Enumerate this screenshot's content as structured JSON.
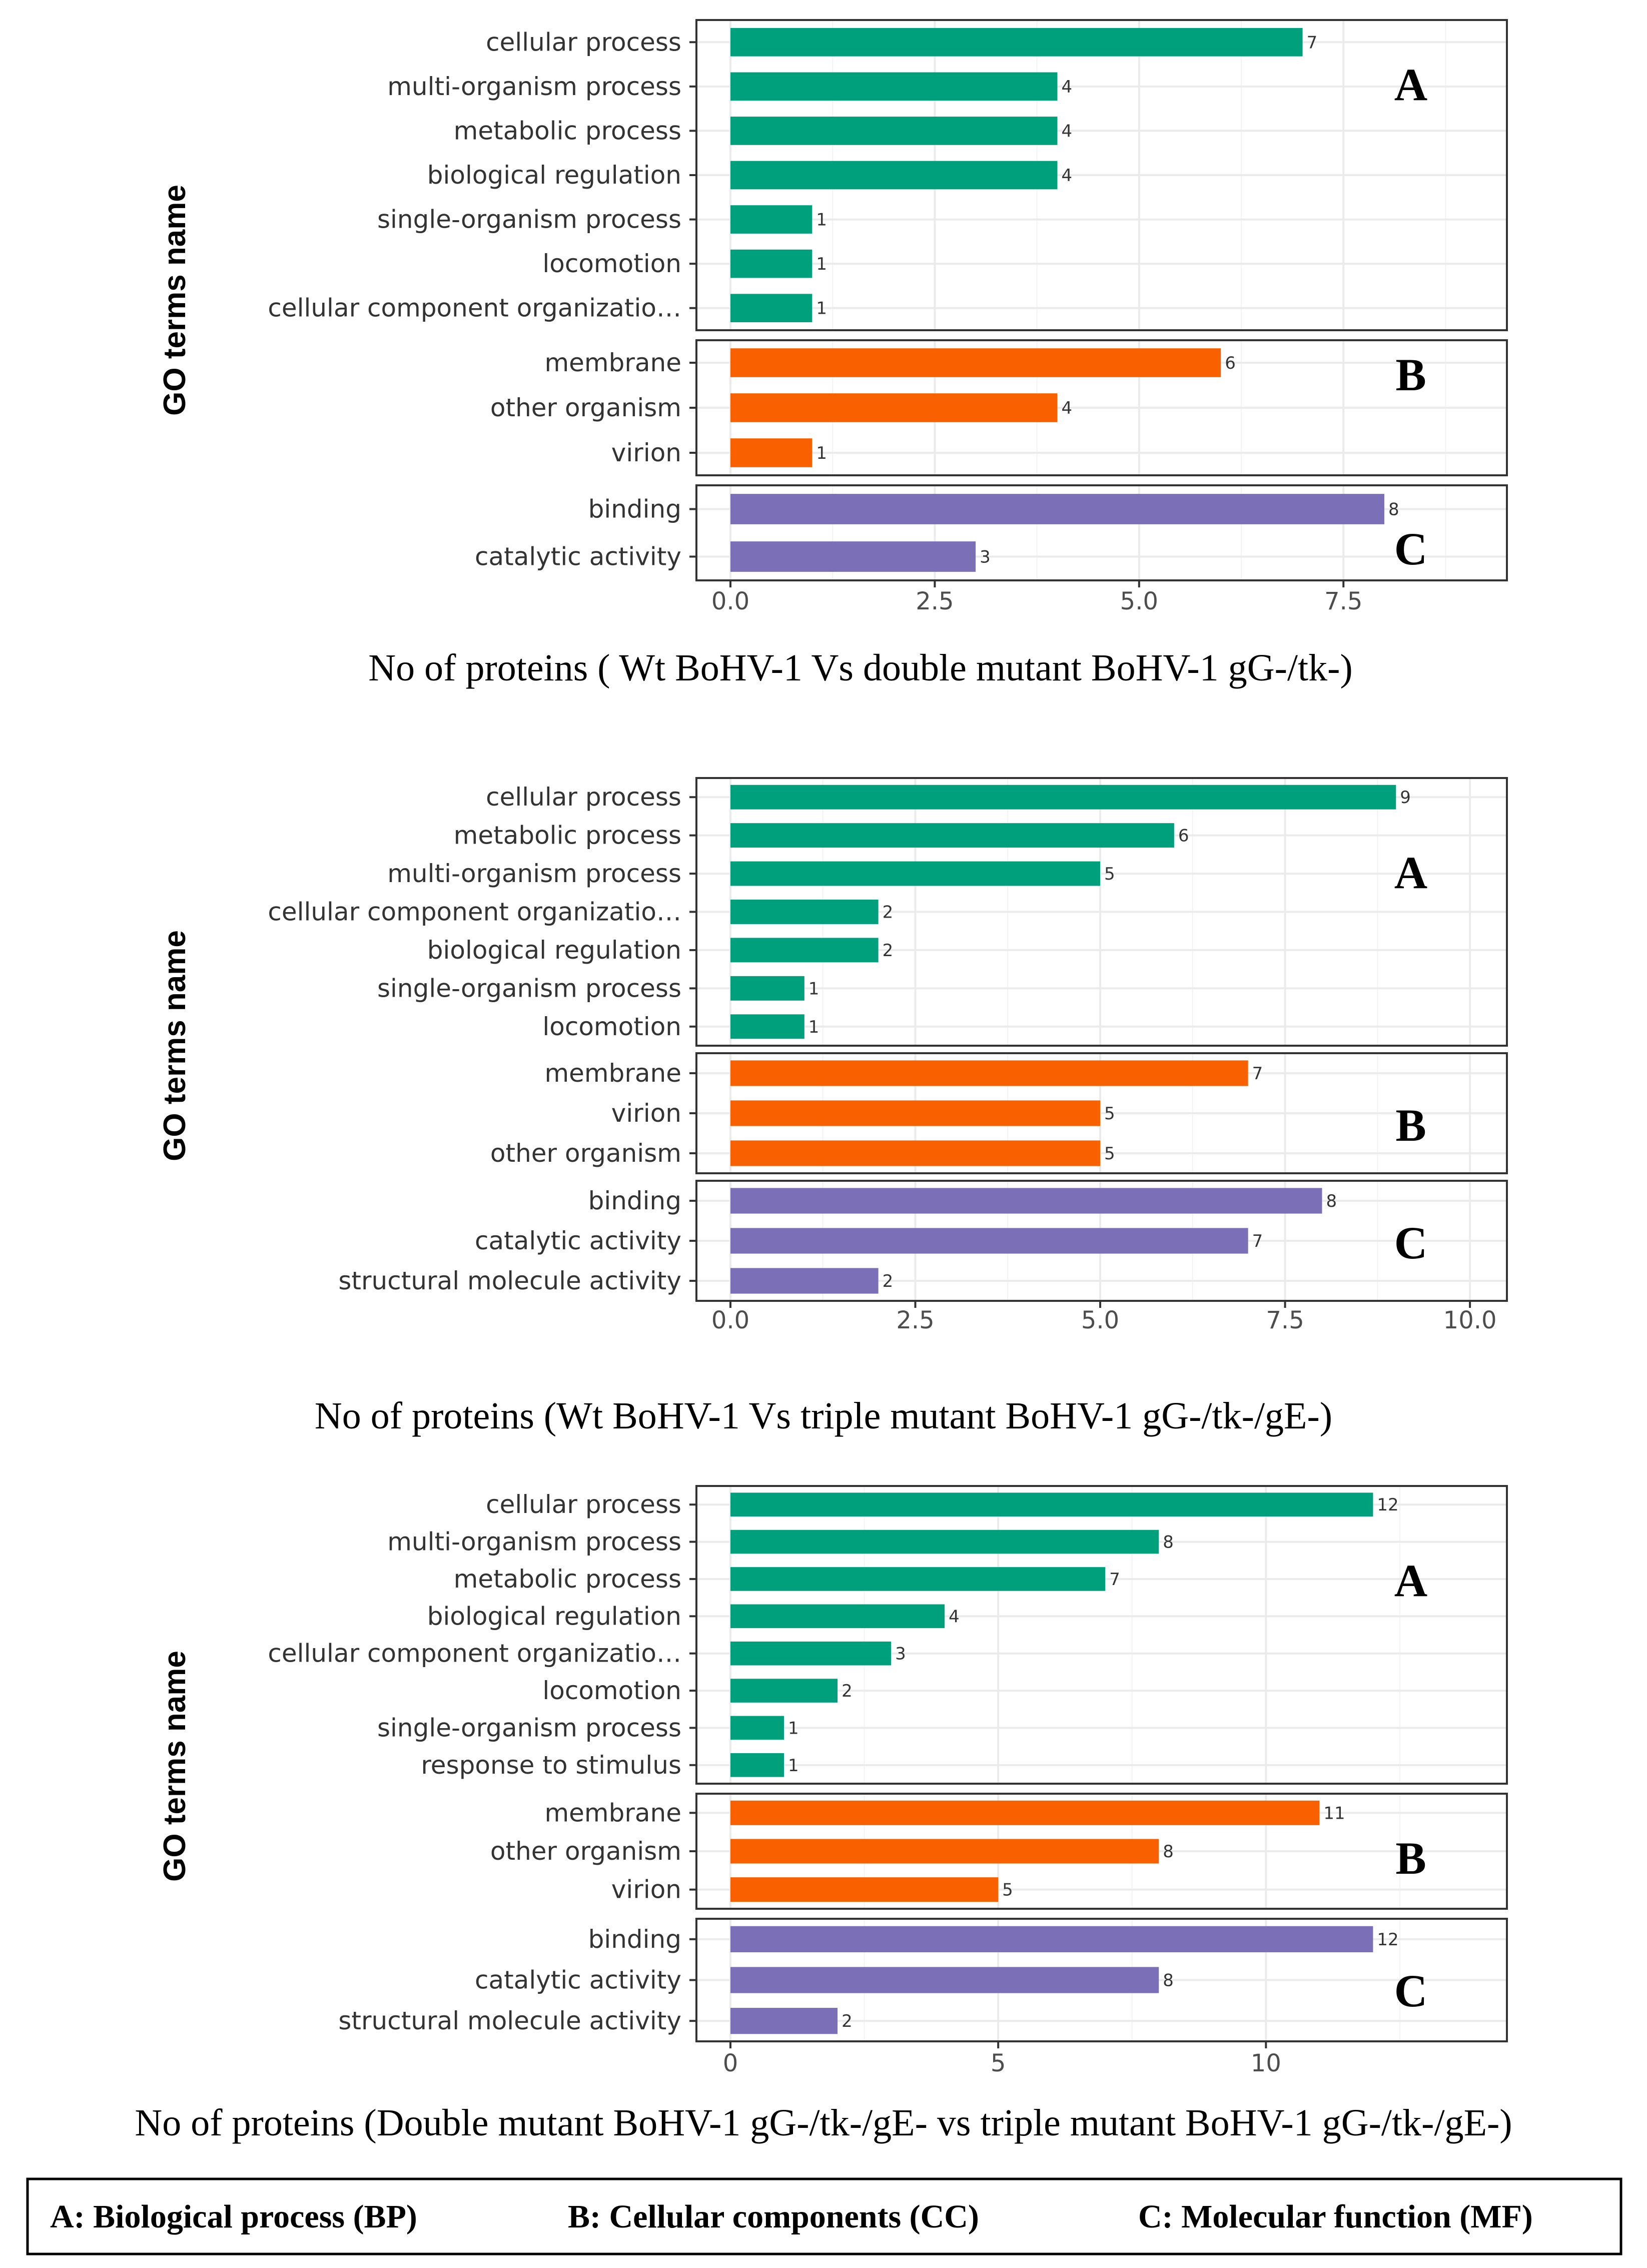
{
  "chart_data": [
    {
      "type": "bar",
      "orientation": "horizontal",
      "ylabel": "GO terms name",
      "xlabel": "No of proteins ( Wt BoHV-1 Vs double mutant BoHV-1 gG-/tk-)",
      "xlim": [
        0,
        9.5
      ],
      "xticks": [
        "0.0",
        "2.5",
        "5.0",
        "7.5"
      ],
      "xtick_values": [
        0,
        2.5,
        5,
        7.5
      ],
      "grid": true,
      "groups": [
        {
          "panel": "A",
          "color": "#00a07c",
          "categories": [
            "cellular process",
            "multi-organism process",
            "metabolic process",
            "biological regulation",
            "single-organism process",
            "locomotion",
            "cellular component organizatio…"
          ],
          "values": [
            7,
            4,
            4,
            4,
            1,
            1,
            1
          ]
        },
        {
          "panel": "B",
          "color": "#f86000",
          "categories": [
            "membrane",
            "other organism",
            "virion"
          ],
          "values": [
            6,
            4,
            1
          ]
        },
        {
          "panel": "C",
          "color": "#7b6fb8",
          "categories": [
            "binding",
            "catalytic activity"
          ],
          "values": [
            8,
            3
          ]
        }
      ]
    },
    {
      "type": "bar",
      "orientation": "horizontal",
      "ylabel": "GO terms name",
      "xlabel": "No of proteins (Wt BoHV-1 Vs triple mutant BoHV-1 gG-/tk-/gE-)",
      "xlim": [
        0,
        10.5
      ],
      "xticks": [
        "0.0",
        "2.5",
        "5.0",
        "7.5",
        "10.0"
      ],
      "xtick_values": [
        0,
        2.5,
        5,
        7.5,
        10
      ],
      "grid": true,
      "groups": [
        {
          "panel": "A",
          "color": "#00a07c",
          "categories": [
            "cellular process",
            "metabolic process",
            "multi-organism process",
            "cellular component organizatio…",
            "biological regulation",
            "single-organism process",
            "locomotion"
          ],
          "values": [
            9,
            6,
            5,
            2,
            2,
            1,
            1
          ]
        },
        {
          "panel": "B",
          "color": "#f86000",
          "categories": [
            "membrane",
            "virion",
            "other organism"
          ],
          "values": [
            7,
            5,
            5
          ]
        },
        {
          "panel": "C",
          "color": "#7b6fb8",
          "categories": [
            "binding",
            "catalytic activity",
            "structural molecule activity"
          ],
          "values": [
            8,
            7,
            2
          ]
        }
      ]
    },
    {
      "type": "bar",
      "orientation": "horizontal",
      "ylabel": "GO terms name",
      "xlabel": "No of proteins (Double mutant BoHV-1 gG-/tk-/gE- vs triple mutant BoHV-1 gG-/tk-/gE-)",
      "xlim": [
        0,
        14.5
      ],
      "xticks": [
        "0",
        "5",
        "10"
      ],
      "xtick_values": [
        0,
        5,
        10
      ],
      "grid": true,
      "groups": [
        {
          "panel": "A",
          "color": "#00a07c",
          "categories": [
            "cellular process",
            "multi-organism process",
            "metabolic process",
            "biological regulation",
            "cellular component organizatio…",
            "locomotion",
            "single-organism process",
            "response to stimulus"
          ],
          "values": [
            12,
            8,
            7,
            4,
            3,
            2,
            1,
            1
          ]
        },
        {
          "panel": "B",
          "color": "#f86000",
          "categories": [
            "membrane",
            "other organism",
            "virion"
          ],
          "values": [
            11,
            8,
            5
          ]
        },
        {
          "panel": "C",
          "color": "#7b6fb8",
          "categories": [
            "binding",
            "catalytic activity",
            "structural molecule activity"
          ],
          "values": [
            12,
            8,
            2
          ]
        }
      ]
    }
  ],
  "legend": {
    "a": "A: Biological process (BP)",
    "b": "B: Cellular  components  (CC)",
    "c": "C: Molecular function  (MF)"
  }
}
